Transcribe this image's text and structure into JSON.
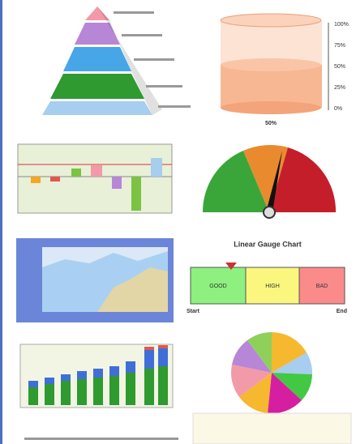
{
  "cylinder": {
    "ticks": [
      "100%",
      "75%",
      "50%",
      "25%",
      "0%"
    ],
    "value_label": "50%"
  },
  "linear_gauge": {
    "title": "Linear Gauge Chart",
    "zones": [
      "GOOD",
      "HIGH",
      "BAD"
    ],
    "start": "Start",
    "end": "End"
  }
}
